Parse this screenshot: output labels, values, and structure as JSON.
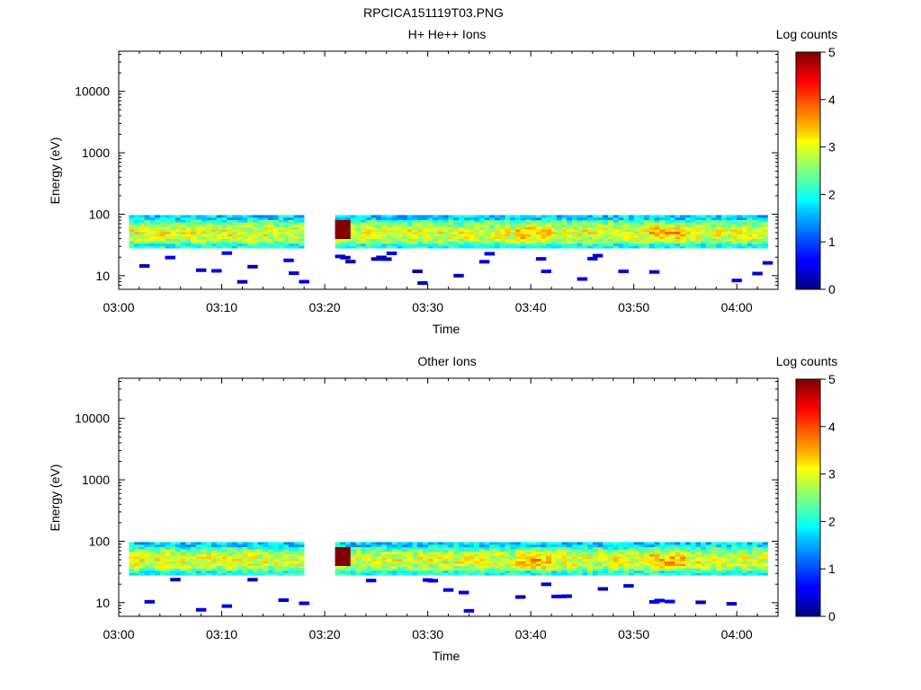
{
  "figure": {
    "title": "RPCICA151119T03.PNG"
  },
  "chart_data": [
    {
      "type": "heatmap",
      "title": "H+ He++ Ions",
      "xlabel": "Time",
      "ylabel": "Energy (eV)",
      "colorbar_label": "Log counts",
      "x_ticks": [
        "03:00",
        "03:10",
        "03:20",
        "03:30",
        "03:40",
        "03:50",
        "04:00"
      ],
      "x_range_minutes": [
        0,
        64
      ],
      "y_ticks": [
        "10",
        "100",
        "1000",
        "10000"
      ],
      "y_range": [
        6,
        45000
      ],
      "y_scale": "log",
      "colorbar_ticks": [
        "0",
        "1",
        "2",
        "3",
        "4",
        "5"
      ],
      "colorbar_range": [
        0,
        5
      ],
      "gap_minutes": [
        17.8,
        20.8
      ],
      "bright_column_minute": 21.6,
      "band_bottom_eV": 28,
      "band_top_eV": 97
    },
    {
      "type": "heatmap",
      "title": "Other Ions",
      "xlabel": "Time",
      "ylabel": "Energy (eV)",
      "colorbar_label": "Log counts",
      "x_ticks": [
        "03:00",
        "03:10",
        "03:20",
        "03:30",
        "03:40",
        "03:50",
        "04:00"
      ],
      "x_range_minutes": [
        0,
        64
      ],
      "y_ticks": [
        "10",
        "100",
        "1000",
        "10000"
      ],
      "y_range": [
        6,
        45000
      ],
      "y_scale": "log",
      "colorbar_ticks": [
        "0",
        "1",
        "2",
        "3",
        "4",
        "5"
      ],
      "colorbar_range": [
        0,
        5
      ],
      "gap_minutes": [
        17.8,
        20.8
      ],
      "bright_column_minute": 21.6,
      "band_bottom_eV": 28,
      "band_top_eV": 97
    }
  ]
}
